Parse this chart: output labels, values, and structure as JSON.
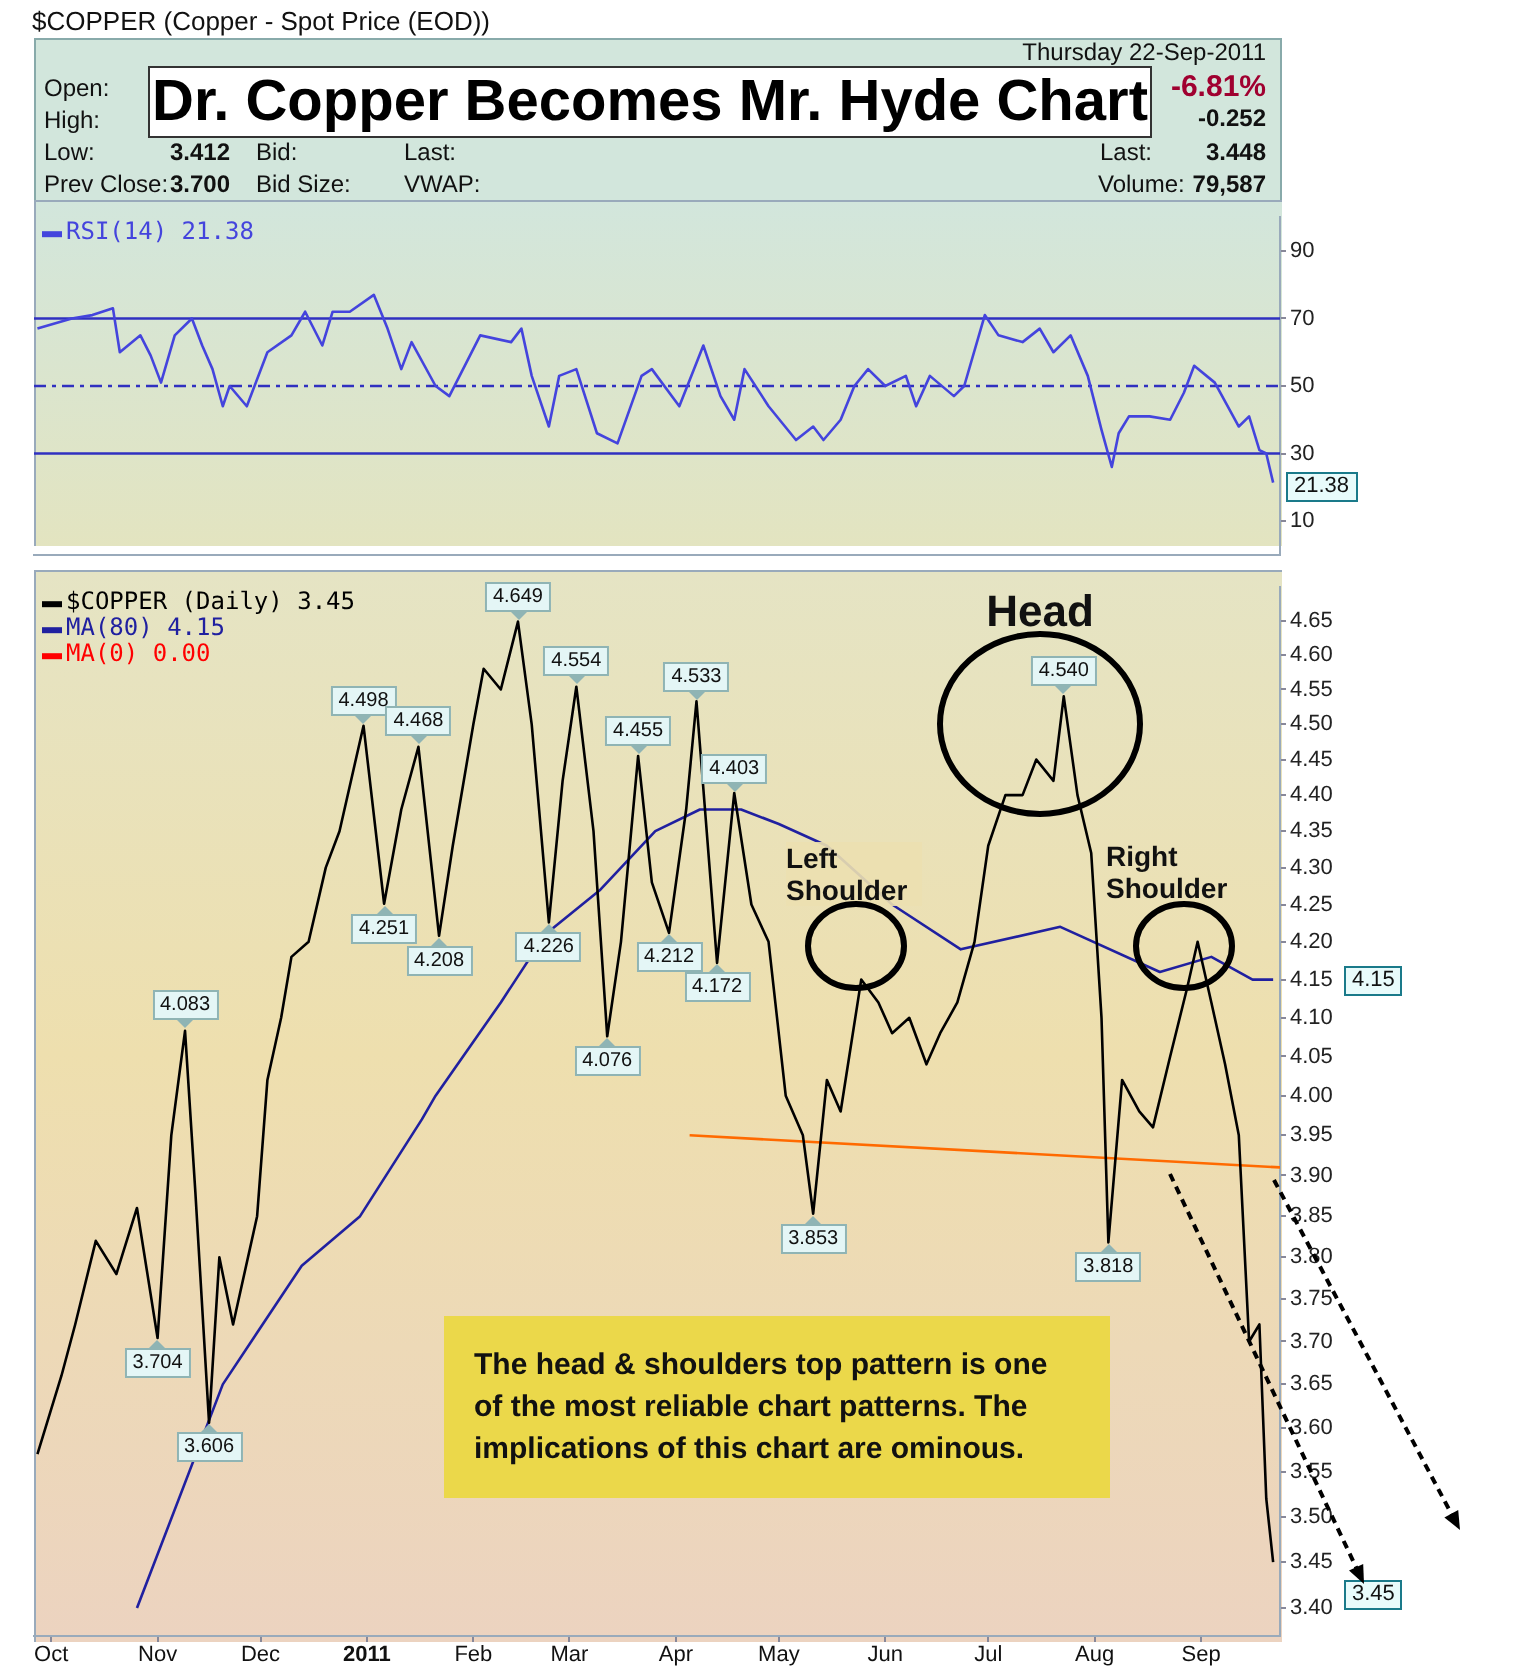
{
  "chart_data": [
    {
      "type": "other",
      "title": "Dr. Copper Becomes Mr. Hyde Chart",
      "subtitle": "$COPPER (Copper - Spot Price (EOD))",
      "annotations": [
        "Thursday  22-Sep-2011",
        "Open:",
        "High:",
        "Low:",
        "3.412",
        "Bid:",
        "Last:",
        "Prev Close:",
        "3.700",
        "Bid Size:",
        "VWAP:",
        "-6.81%",
        "-0.252",
        "Last:",
        "3.448",
        "Volume:",
        "79,587"
      ]
    },
    {
      "type": "line",
      "xlim": [
        "2010-09-26",
        "2011-09-24"
      ],
      "ylim": [
        0,
        100
      ],
      "yticks": [
        10,
        30,
        50,
        70,
        90
      ],
      "tick_labels": "y",
      "legend": "top left",
      "xticks": [
        {
          "value": "2010-10-01",
          "label": null
        },
        {
          "value": "2010-11-01",
          "label": null
        },
        {
          "value": "2010-12-01",
          "label": null
        },
        {
          "value": "2011-01-01",
          "label": null
        },
        {
          "value": "2011-02-01",
          "label": null
        },
        {
          "value": "2011-03-01",
          "label": null
        },
        {
          "value": "2011-04-01",
          "label": null
        },
        {
          "value": "2011-05-01",
          "label": null
        },
        {
          "value": "2011-06-01",
          "label": null
        },
        {
          "value": "2011-07-01",
          "label": null
        },
        {
          "value": "2011-08-01",
          "label": null
        },
        {
          "value": "2011-09-01",
          "label": null
        }
      ],
      "ref_lines": [
        {
          "axis": "y",
          "value": 70,
          "color": "#3030c0"
        },
        {
          "axis": "y",
          "value": 50,
          "color": "#3030c0",
          "line_style": "dashed"
        },
        {
          "axis": "y",
          "value": 30,
          "color": "#3030c0"
        }
      ],
      "annotations": [
        "21.38"
      ],
      "series": [
        {
          "name": "RSI(14) 21.38",
          "color": "#4444dd",
          "x": [
            "2010-09-27",
            "2010-10-07",
            "2010-10-13",
            "2010-10-19",
            "2010-10-21",
            "2010-10-27",
            "2010-10-30",
            "2010-11-02",
            "2010-11-06",
            "2010-11-11",
            "2010-11-14",
            "2010-11-17",
            "2010-11-20",
            "2010-11-22",
            "2010-11-27",
            "2010-12-03",
            "2010-12-10",
            "2010-12-14",
            "2010-12-19",
            "2010-12-22",
            "2010-12-27",
            "2011-01-03",
            "2011-01-07",
            "2011-01-11",
            "2011-01-14",
            "2011-01-21",
            "2011-01-25",
            "2011-02-03",
            "2011-02-12",
            "2011-02-15",
            "2011-02-18",
            "2011-02-23",
            "2011-02-26",
            "2011-03-03",
            "2011-03-09",
            "2011-03-15",
            "2011-03-22",
            "2011-03-25",
            "2011-04-02",
            "2011-04-09",
            "2011-04-14",
            "2011-04-18",
            "2011-04-21",
            "2011-04-28",
            "2011-05-06",
            "2011-05-11",
            "2011-05-14",
            "2011-05-19",
            "2011-05-23",
            "2011-05-27",
            "2011-06-01",
            "2011-06-07",
            "2011-06-10",
            "2011-06-14",
            "2011-06-21",
            "2011-06-24",
            "2011-06-30",
            "2011-07-04",
            "2011-07-11",
            "2011-07-16",
            "2011-07-20",
            "2011-07-25",
            "2011-07-30",
            "2011-08-03",
            "2011-08-06",
            "2011-08-08",
            "2011-08-11",
            "2011-08-17",
            "2011-08-23",
            "2011-08-27",
            "2011-08-30",
            "2011-09-05",
            "2011-09-12",
            "2011-09-15",
            "2011-09-18",
            "2011-09-20",
            "2011-09-22"
          ],
          "values": [
            67,
            70,
            71,
            73,
            60,
            65,
            59,
            51,
            65,
            70,
            62,
            55,
            44,
            50,
            44,
            60,
            65,
            72,
            62,
            72,
            72,
            77,
            67,
            55,
            63,
            50,
            47,
            65,
            63,
            67,
            53,
            38,
            53,
            55,
            36,
            33,
            53,
            55,
            44,
            62,
            47,
            40,
            55,
            44,
            34,
            38,
            34,
            40,
            50,
            55,
            50,
            53,
            44,
            53,
            47,
            50,
            71,
            65,
            63,
            67,
            60,
            65,
            53,
            37,
            26,
            36,
            41,
            41,
            40,
            48,
            56,
            51,
            38,
            41,
            31,
            30,
            21.38
          ]
        }
      ]
    },
    {
      "type": "line",
      "log": true,
      "xlim": [
        "2010-09-26",
        "2011-09-24"
      ],
      "ylim": [
        3.37,
        4.7
      ],
      "legend": "top left",
      "xticks": [
        {
          "value": "2010-10-01",
          "label": "Oct"
        },
        {
          "value": "2010-11-01",
          "label": "Nov"
        },
        {
          "value": "2010-12-01",
          "label": "Dec"
        },
        {
          "value": "2011-01-01",
          "label": "2011"
        },
        {
          "value": "2011-02-01",
          "label": "Feb"
        },
        {
          "value": "2011-03-01",
          "label": "Mar"
        },
        {
          "value": "2011-04-01",
          "label": "Apr"
        },
        {
          "value": "2011-05-01",
          "label": "May"
        },
        {
          "value": "2011-06-01",
          "label": "Jun"
        },
        {
          "value": "2011-07-01",
          "label": "Jul"
        },
        {
          "value": "2011-08-01",
          "label": "Aug"
        },
        {
          "value": "2011-09-01",
          "label": "Sep"
        }
      ],
      "yticks": [
        {
          "value": 3.4,
          "label": "3.40"
        },
        3.45,
        {
          "value": 3.5,
          "label": "3.50"
        },
        3.55,
        {
          "value": 3.6,
          "label": "3.60"
        },
        3.65,
        {
          "value": 3.7,
          "label": "3.70"
        },
        3.75,
        {
          "value": 3.8,
          "label": "3.80"
        },
        3.85,
        {
          "value": 3.9,
          "label": "3.90"
        },
        3.95,
        {
          "value": 4,
          "label": "4.00"
        },
        4.05,
        {
          "value": 4.1,
          "label": "4.10"
        },
        4.15,
        {
          "value": 4.2,
          "label": "4.20"
        },
        4.25,
        {
          "value": 4.3,
          "label": "4.30"
        },
        4.35,
        {
          "value": 4.4,
          "label": "4.40"
        },
        4.45,
        {
          "value": 4.5,
          "label": "4.50"
        },
        4.55,
        {
          "value": 4.6,
          "label": "4.60"
        },
        4.65
      ],
      "annotations": [
        {
          "text": "4.083",
          "x": "2010-11-09",
          "y": 4.083
        },
        {
          "text": "3.704",
          "x": "2010-11-01",
          "y": 3.704
        },
        {
          "text": "3.606",
          "x": "2010-11-16",
          "y": 3.606
        },
        {
          "text": "4.498",
          "x": "2010-12-31",
          "y": 4.498
        },
        {
          "text": "4.251",
          "x": "2011-01-06",
          "y": 4.251
        },
        {
          "text": "4.468",
          "x": "2011-01-16",
          "y": 4.468
        },
        {
          "text": "4.208",
          "x": "2011-01-22",
          "y": 4.208
        },
        {
          "text": "4.649",
          "x": "2011-02-14",
          "y": 4.649
        },
        {
          "text": "4.226",
          "x": "2011-02-23",
          "y": 4.226
        },
        {
          "text": "4.554",
          "x": "2011-03-03",
          "y": 4.554
        },
        {
          "text": "4.076",
          "x": "2011-03-12",
          "y": 4.076
        },
        {
          "text": "4.455",
          "x": "2011-03-21",
          "y": 4.455
        },
        {
          "text": "4.212",
          "x": "2011-03-30",
          "y": 4.212
        },
        {
          "text": "4.533",
          "x": "2011-04-07",
          "y": 4.533
        },
        {
          "text": "4.172",
          "x": "2011-04-13",
          "y": 4.172
        },
        {
          "text": "4.403",
          "x": "2011-04-18",
          "y": 4.403
        },
        {
          "text": "3.853",
          "x": "2011-05-11",
          "y": 3.853
        },
        {
          "text": "4.540",
          "x": "2011-07-23",
          "y": 4.54
        },
        {
          "text": "3.818",
          "x": "2011-08-05",
          "y": 3.818
        },
        "3.45",
        "4.15",
        "Head",
        "Left Shoulder",
        "Right Shoulder",
        "The head & shoulders top pattern is one of the most  reliable chart patterns.  The implications of this chart are ominous."
      ],
      "series": [
        {
          "name": "$COPPER (Daily) 3.45",
          "color": "#000000",
          "x": [
            "2010-09-27",
            "2010-10-04",
            "2010-10-08",
            "2010-10-14",
            "2010-10-20",
            "2010-10-26",
            "2010-11-01",
            "2010-11-05",
            "2010-11-09",
            "2010-11-12",
            "2010-11-16",
            "2010-11-19",
            "2010-11-23",
            "2010-11-30",
            "2010-12-03",
            "2010-12-07",
            "2010-12-10",
            "2010-12-15",
            "2010-12-20",
            "2010-12-24",
            "2010-12-31",
            "2011-01-06",
            "2011-01-11",
            "2011-01-16",
            "2011-01-22",
            "2011-01-26",
            "2011-02-01",
            "2011-02-04",
            "2011-02-09",
            "2011-02-14",
            "2011-02-18",
            "2011-02-23",
            "2011-02-27",
            "2011-03-03",
            "2011-03-08",
            "2011-03-12",
            "2011-03-16",
            "2011-03-21",
            "2011-03-25",
            "2011-03-30",
            "2011-04-04",
            "2011-04-07",
            "2011-04-13",
            "2011-04-18",
            "2011-04-23",
            "2011-04-28",
            "2011-05-03",
            "2011-05-08",
            "2011-05-11",
            "2011-05-15",
            "2011-05-19",
            "2011-05-25",
            "2011-05-30",
            "2011-06-03",
            "2011-06-08",
            "2011-06-13",
            "2011-06-17",
            "2011-06-22",
            "2011-06-27",
            "2011-07-01",
            "2011-07-06",
            "2011-07-11",
            "2011-07-15",
            "2011-07-20",
            "2011-07-23",
            "2011-07-27",
            "2011-07-31",
            "2011-08-03",
            "2011-08-05",
            "2011-08-09",
            "2011-08-14",
            "2011-08-18",
            "2011-08-23",
            "2011-08-28",
            "2011-08-31",
            "2011-09-04",
            "2011-09-08",
            "2011-09-12",
            "2011-09-15",
            "2011-09-18",
            "2011-09-20",
            "2011-09-22"
          ],
          "values": [
            3.57,
            3.66,
            3.72,
            3.82,
            3.78,
            3.86,
            3.704,
            3.95,
            4.083,
            3.88,
            3.606,
            3.8,
            3.72,
            3.85,
            4.02,
            4.1,
            4.18,
            4.2,
            4.3,
            4.35,
            4.498,
            4.251,
            4.38,
            4.468,
            4.208,
            4.33,
            4.5,
            4.58,
            4.55,
            4.649,
            4.5,
            4.226,
            4.42,
            4.554,
            4.35,
            4.076,
            4.2,
            4.455,
            4.28,
            4.212,
            4.38,
            4.533,
            4.172,
            4.403,
            4.25,
            4.2,
            4.0,
            3.95,
            3.853,
            4.02,
            3.98,
            4.15,
            4.12,
            4.08,
            4.1,
            4.04,
            4.08,
            4.12,
            4.2,
            4.33,
            4.4,
            4.4,
            4.45,
            4.42,
            4.54,
            4.4,
            4.32,
            4.1,
            3.818,
            4.02,
            3.98,
            3.96,
            4.05,
            4.14,
            4.2,
            4.12,
            4.04,
            3.95,
            3.7,
            3.72,
            3.52,
            3.45
          ]
        },
        {
          "name": "MA(80) 4.15",
          "color": "#2020a0",
          "x": [
            "2010-10-26",
            "2010-11-20",
            "2010-12-13",
            "2010-12-30",
            "2011-01-17",
            "2011-01-21",
            "2011-02-09",
            "2011-02-22",
            "2011-03-10",
            "2011-03-26",
            "2011-04-08",
            "2011-04-20",
            "2011-05-01",
            "2011-05-15",
            "2011-06-03",
            "2011-06-23",
            "2011-07-22",
            "2011-08-20",
            "2011-09-04",
            "2011-09-16",
            "2011-09-22"
          ],
          "values": [
            3.4,
            3.65,
            3.79,
            3.85,
            3.97,
            4.0,
            4.12,
            4.21,
            4.27,
            4.35,
            4.38,
            4.38,
            4.36,
            4.33,
            4.25,
            4.19,
            4.22,
            4.16,
            4.18,
            4.15,
            4.15
          ]
        },
        {
          "name": "MA(0) 0.00",
          "color": "#ff0000"
        },
        {
          "color": "#ff6a00",
          "x": [
            "2011-04-05",
            "2011-09-24"
          ],
          "values": [
            3.95,
            3.91
          ]
        }
      ]
    }
  ]
}
